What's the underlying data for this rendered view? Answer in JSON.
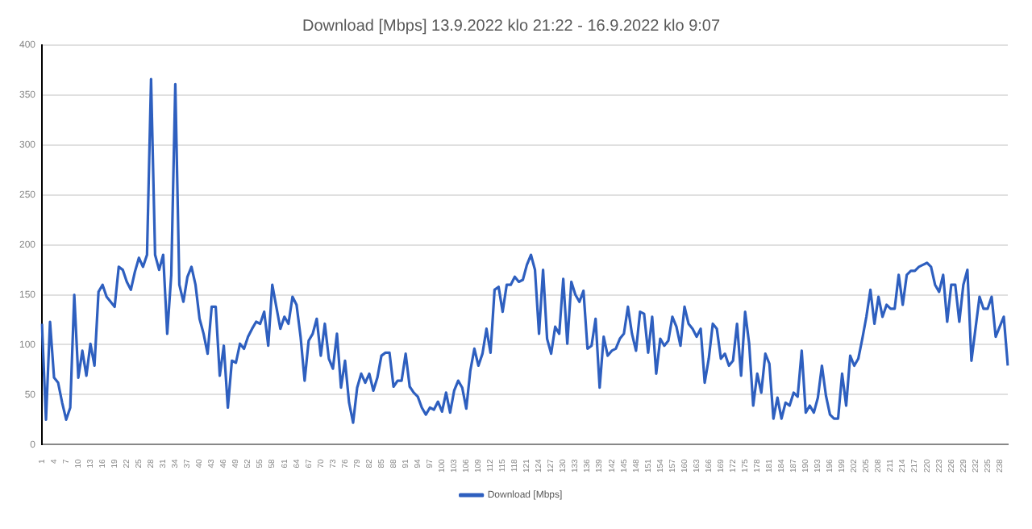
{
  "chart_data": {
    "type": "line",
    "title": "Download [Mbps] 13.9.2022 klo 21:22 - 16.9.2022 klo 9:07",
    "categories": [
      "1",
      null,
      null,
      "4",
      null,
      null,
      "7",
      null,
      null,
      "10",
      null,
      null,
      "13",
      null,
      null,
      "16",
      null,
      null,
      "19",
      null,
      null,
      "22",
      null,
      null,
      "25",
      null,
      null,
      "28",
      null,
      null,
      "31",
      null,
      null,
      "34",
      null,
      null,
      "37",
      null,
      null,
      "40",
      null,
      null,
      "43",
      null,
      null,
      "46",
      null,
      null,
      "49",
      null,
      null,
      "52",
      null,
      null,
      "55",
      null,
      null,
      "58",
      null,
      null,
      "61",
      null,
      null,
      "64",
      null,
      null,
      "67",
      null,
      null,
      "70",
      null,
      null,
      "73",
      null,
      null,
      "76",
      null,
      null,
      "79",
      null,
      null,
      "82",
      null,
      null,
      "85",
      null,
      null,
      "88",
      null,
      null,
      "91",
      null,
      null,
      "94",
      null,
      null,
      "97",
      null,
      null,
      "100",
      null,
      null,
      "103",
      null,
      null,
      "106",
      null,
      null,
      "109",
      null,
      null,
      "112",
      null,
      null,
      "115",
      null,
      null,
      "118",
      null,
      null,
      "121",
      null,
      null,
      "124",
      null,
      null,
      "127",
      null,
      null,
      "130",
      null,
      null,
      "133",
      null,
      null,
      "136",
      null,
      null,
      "139",
      null,
      null,
      "142",
      null,
      null,
      "145",
      null,
      null,
      "148",
      null,
      null,
      "151",
      null,
      null,
      "154",
      null,
      null,
      "157",
      null,
      null,
      "160",
      null,
      null,
      "163",
      null,
      null,
      "166",
      null,
      null,
      "169",
      null,
      null,
      "172",
      null,
      null,
      "175",
      null,
      null,
      "178",
      null,
      null,
      "181",
      null,
      null,
      "184",
      null,
      null,
      "187",
      null,
      null,
      "190",
      null,
      null,
      "193",
      null,
      null,
      "196",
      null,
      null,
      "199",
      null,
      null,
      "202",
      null,
      null,
      "205",
      null,
      null,
      "208",
      null,
      null,
      "211",
      null,
      null,
      "214",
      null,
      null,
      "217",
      null,
      null,
      "220",
      null,
      null,
      "223",
      null,
      null,
      "226",
      null,
      null,
      "229",
      null,
      null,
      "232",
      null,
      null,
      "235",
      null,
      null,
      "238",
      null,
      null
    ],
    "series": [
      {
        "name": "Download [Mbps]",
        "color": "#2e5fbf",
        "values": [
          121,
          25,
          123,
          67,
          62,
          42,
          25,
          37,
          150,
          67,
          94,
          69,
          101,
          79,
          153,
          160,
          148,
          143,
          138,
          178,
          175,
          163,
          155,
          173,
          187,
          178,
          190,
          366,
          190,
          175,
          190,
          111,
          170,
          361,
          160,
          143,
          168,
          178,
          160,
          126,
          111,
          91,
          138,
          138,
          69,
          99,
          37,
          84,
          82,
          101,
          96,
          108,
          116,
          123,
          121,
          133,
          99,
          160,
          138,
          116,
          128,
          121,
          148,
          140,
          108,
          64,
          104,
          111,
          126,
          89,
          121,
          86,
          76,
          111,
          57,
          84,
          42,
          22,
          57,
          71,
          62,
          71,
          54,
          67,
          89,
          92,
          92,
          58,
          64,
          64,
          91,
          58,
          52,
          48,
          37,
          30,
          37,
          35,
          43,
          33,
          52,
          32,
          54,
          64,
          57,
          36,
          74,
          96,
          79,
          91,
          116,
          92,
          155,
          158,
          133,
          160,
          160,
          168,
          163,
          165,
          180,
          190,
          175,
          111,
          175,
          106,
          91,
          118,
          111,
          166,
          101,
          163,
          150,
          143,
          154,
          96,
          99,
          126,
          57,
          108,
          89,
          94,
          96,
          106,
          111,
          138,
          111,
          94,
          133,
          131,
          92,
          128,
          71,
          106,
          99,
          104,
          128,
          118,
          99,
          138,
          121,
          116,
          108,
          116,
          62,
          86,
          121,
          116,
          86,
          91,
          79,
          84,
          121,
          69,
          133,
          101,
          39,
          71,
          52,
          91,
          81,
          26,
          47,
          26,
          42,
          39,
          52,
          48,
          94,
          32,
          39,
          32,
          47,
          79,
          49,
          30,
          26,
          26,
          71,
          39,
          89,
          79,
          86,
          106,
          128,
          155,
          121,
          148,
          128,
          140,
          136,
          136,
          170,
          140,
          170,
          174,
          174,
          178,
          180,
          182,
          178,
          160,
          153,
          170,
          123,
          160,
          160,
          123,
          160,
          175,
          84,
          116,
          148,
          136,
          136,
          148,
          108,
          118,
          128,
          79
        ]
      }
    ],
    "ylim": [
      0,
      400
    ],
    "yticks": [
      0,
      50,
      100,
      150,
      200,
      250,
      300,
      350,
      400
    ],
    "grid": "y",
    "legend": "bottom",
    "marker": "none",
    "line_style": "solid"
  }
}
